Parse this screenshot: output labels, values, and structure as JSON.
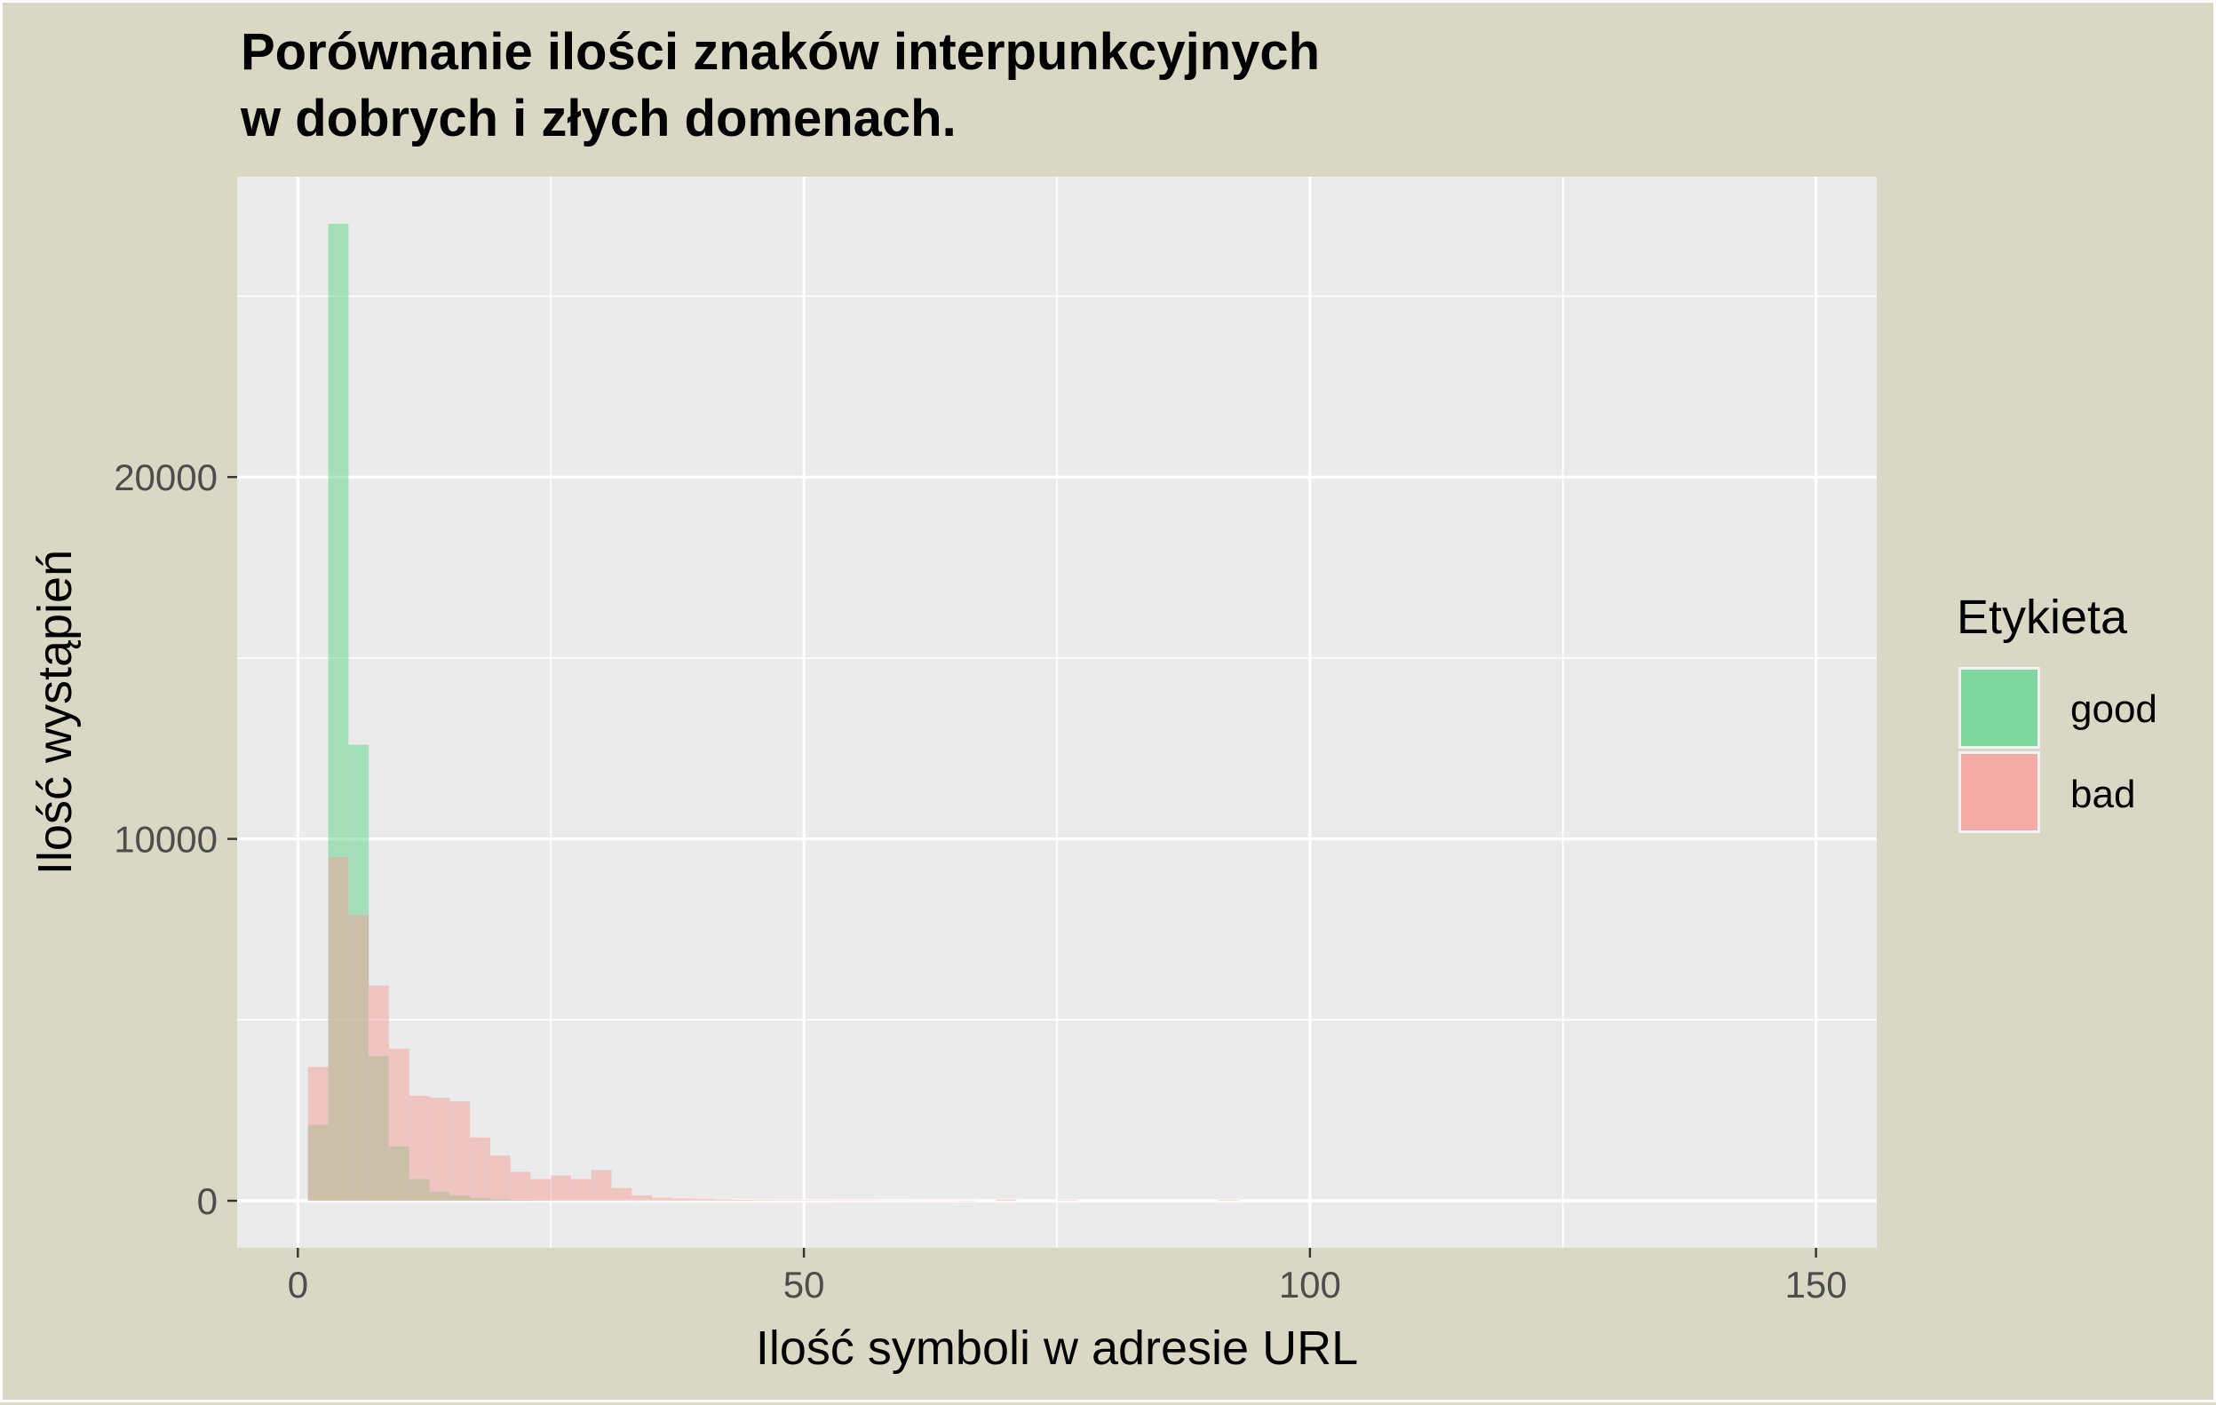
{
  "chart_data": {
    "type": "bar",
    "title_lines": [
      "Porównanie ilości znaków interpunkcyjnych",
      "w dobrych i złych domenach."
    ],
    "xlabel": "Ilość symboli w adresie URL",
    "ylabel": "Ilość wystąpień",
    "xlim": [
      -6,
      156
    ],
    "ylim": [
      -1300,
      28300
    ],
    "x_ticks": [
      0,
      50,
      100,
      150
    ],
    "x_tick_labels": [
      "0",
      "50",
      "100",
      "150"
    ],
    "y_ticks": [
      0,
      10000,
      20000
    ],
    "y_tick_labels": [
      "0",
      "10000",
      "20000"
    ],
    "bin_width": 2,
    "grid": true,
    "legend": {
      "title": "Etykieta",
      "position": "right",
      "entries": [
        {
          "label": "good",
          "color": "#7fd8a0"
        },
        {
          "label": "bad",
          "color": "#f4aaa5"
        }
      ]
    },
    "series": [
      {
        "name": "good",
        "color": "#5fd38a",
        "opacity": 0.5,
        "bins": [
          {
            "x": 2,
            "y": 2100
          },
          {
            "x": 4,
            "y": 27000
          },
          {
            "x": 6,
            "y": 12600
          },
          {
            "x": 8,
            "y": 4000
          },
          {
            "x": 10,
            "y": 1500
          },
          {
            "x": 12,
            "y": 600
          },
          {
            "x": 14,
            "y": 250
          },
          {
            "x": 16,
            "y": 150
          },
          {
            "x": 18,
            "y": 80
          },
          {
            "x": 20,
            "y": 40
          },
          {
            "x": 22,
            "y": 20
          },
          {
            "x": 24,
            "y": 10
          }
        ]
      },
      {
        "name": "bad",
        "color": "#f4a09a",
        "opacity": 0.5,
        "bins": [
          {
            "x": 2,
            "y": 3700
          },
          {
            "x": 4,
            "y": 9500
          },
          {
            "x": 6,
            "y": 7900
          },
          {
            "x": 8,
            "y": 5950
          },
          {
            "x": 10,
            "y": 4200
          },
          {
            "x": 12,
            "y": 2900
          },
          {
            "x": 14,
            "y": 2850
          },
          {
            "x": 16,
            "y": 2750
          },
          {
            "x": 18,
            "y": 1750
          },
          {
            "x": 20,
            "y": 1250
          },
          {
            "x": 22,
            "y": 800
          },
          {
            "x": 24,
            "y": 600
          },
          {
            "x": 26,
            "y": 700
          },
          {
            "x": 28,
            "y": 600
          },
          {
            "x": 30,
            "y": 850
          },
          {
            "x": 32,
            "y": 350
          },
          {
            "x": 34,
            "y": 150
          },
          {
            "x": 36,
            "y": 80
          },
          {
            "x": 38,
            "y": 60
          },
          {
            "x": 40,
            "y": 50
          },
          {
            "x": 42,
            "y": 35
          },
          {
            "x": 44,
            "y": 25
          },
          {
            "x": 46,
            "y": 20
          },
          {
            "x": 48,
            "y": 15
          },
          {
            "x": 50,
            "y": 15
          },
          {
            "x": 52,
            "y": 12
          },
          {
            "x": 54,
            "y": 10
          },
          {
            "x": 56,
            "y": 10
          },
          {
            "x": 58,
            "y": 8
          },
          {
            "x": 60,
            "y": 8
          },
          {
            "x": 62,
            "y": 6
          },
          {
            "x": 64,
            "y": 6
          },
          {
            "x": 66,
            "y": 5
          },
          {
            "x": 70,
            "y": 30
          },
          {
            "x": 76,
            "y": 15
          },
          {
            "x": 92,
            "y": 20
          }
        ]
      }
    ]
  }
}
